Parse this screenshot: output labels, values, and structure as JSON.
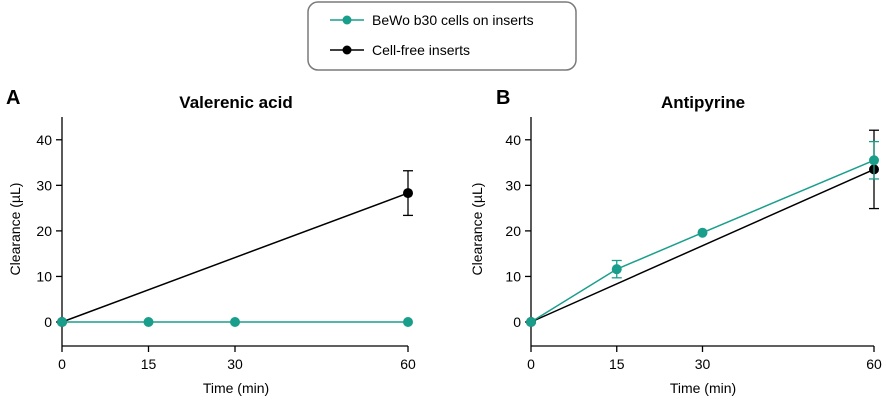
{
  "legend": {
    "entries": [
      {
        "label": "BeWo b30 cells on inserts",
        "color": "#1a9e8c"
      },
      {
        "label": "Cell-free inserts",
        "color": "#000000"
      }
    ]
  },
  "chart_data": [
    {
      "type": "line",
      "panel_label": "A",
      "title": "Valerenic acid",
      "xlabel": "Time (min)",
      "ylabel": "Clearance (µL)",
      "xlim": [
        0,
        60
      ],
      "ylim": [
        0,
        45
      ],
      "xticks": [
        0,
        15,
        30,
        60
      ],
      "yticks": [
        0,
        10,
        20,
        30,
        40
      ],
      "grid": false,
      "series": [
        {
          "name": "BeWo b30 cells on inserts",
          "color": "#1a9e8c",
          "x": [
            0,
            15,
            30,
            60
          ],
          "y": [
            0,
            0,
            0,
            0
          ],
          "err": [
            0,
            0,
            0,
            0
          ]
        },
        {
          "name": "Cell-free inserts",
          "color": "#000000",
          "x": [
            0,
            60
          ],
          "y": [
            0,
            28.3
          ],
          "err": [
            0,
            4.9
          ]
        }
      ]
    },
    {
      "type": "line",
      "panel_label": "B",
      "title": "Antipyrine",
      "xlabel": "Time (min)",
      "ylabel": "Clearance (µL)",
      "xlim": [
        0,
        60
      ],
      "ylim": [
        0,
        45
      ],
      "xticks": [
        0,
        15,
        30,
        60
      ],
      "yticks": [
        0,
        10,
        20,
        30,
        40
      ],
      "grid": false,
      "series": [
        {
          "name": "BeWo b30 cells on inserts",
          "color": "#1a9e8c",
          "x": [
            0,
            15,
            30,
            60
          ],
          "y": [
            0,
            11.6,
            19.6,
            35.5
          ],
          "err": [
            0,
            1.9,
            0,
            4.1
          ]
        },
        {
          "name": "Cell-free inserts",
          "color": "#000000",
          "x": [
            0,
            60
          ],
          "y": [
            0,
            33.5
          ],
          "err": [
            0,
            8.6
          ]
        }
      ]
    }
  ]
}
